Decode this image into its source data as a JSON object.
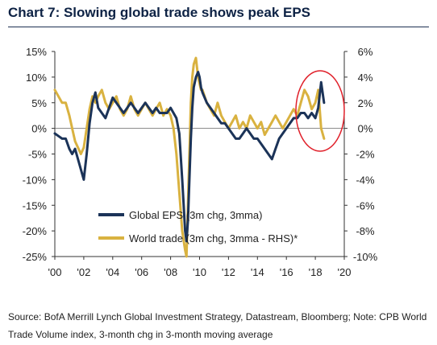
{
  "chart_data": {
    "type": "line",
    "title": "Chart 7: Slowing global trade shows peak EPS",
    "source": "Source: BofA Merrill Lynch Global Investment Strategy, Datastream, Bloomberg; Note: CPB World Trade Volume index, 3-month chg in 3-month moving average",
    "x_ticks": [
      "'00",
      "'02",
      "'04",
      "'06",
      "'08",
      "'10",
      "'12",
      "'14",
      "'16",
      "'18",
      "'20"
    ],
    "xlim": [
      2000,
      2020
    ],
    "y_left": {
      "ticks": [
        "15%",
        "10%",
        "5%",
        "0%",
        "-5%",
        "-10%",
        "-15%",
        "-20%",
        "-25%"
      ],
      "ylim": [
        -25,
        15
      ]
    },
    "y_right": {
      "ticks": [
        "6%",
        "4%",
        "2%",
        "0%",
        "-2%",
        "-4%",
        "-6%",
        "-8%",
        "-10%"
      ],
      "ylim": [
        -10,
        6
      ]
    },
    "legend_position": "lower-middle",
    "highlight": {
      "shape": "ellipse",
      "color": "#e0202a",
      "around": "2017-2018 peak"
    },
    "series": [
      {
        "name": "Global EPS (3m chg, 3mma)",
        "axis": "left",
        "color": "#1b3358",
        "x": [
          2000.0,
          2000.25,
          2000.5,
          2000.75,
          2001.0,
          2001.2,
          2001.4,
          2001.6,
          2001.8,
          2002.0,
          2002.2,
          2002.4,
          2002.6,
          2002.8,
          2003.0,
          2003.25,
          2003.5,
          2003.75,
          2004.0,
          2004.25,
          2004.5,
          2004.75,
          2005.0,
          2005.25,
          2005.5,
          2005.75,
          2006.0,
          2006.25,
          2006.5,
          2006.75,
          2007.0,
          2007.25,
          2007.5,
          2007.75,
          2008.0,
          2008.2,
          2008.4,
          2008.6,
          2008.8,
          2009.0,
          2009.1,
          2009.2,
          2009.3,
          2009.4,
          2009.5,
          2009.6,
          2009.75,
          2009.9,
          2010.0,
          2010.1,
          2010.2,
          2010.35,
          2010.5,
          2010.75,
          2011.0,
          2011.25,
          2011.5,
          2011.75,
          2012.0,
          2012.25,
          2012.5,
          2012.75,
          2013.0,
          2013.25,
          2013.5,
          2013.75,
          2014.0,
          2014.25,
          2014.5,
          2014.75,
          2015.0,
          2015.25,
          2015.5,
          2015.75,
          2016.0,
          2016.25,
          2016.5,
          2016.75,
          2017.0,
          2017.25,
          2017.5,
          2017.75,
          2018.0,
          2018.2,
          2018.4,
          2018.6
        ],
        "values": [
          -1,
          -1.5,
          -2,
          -2,
          -4,
          -5,
          -4,
          -6,
          -8,
          -10,
          -5,
          1,
          5,
          7,
          4,
          3,
          2,
          4,
          6,
          5,
          4,
          3,
          4,
          5,
          4,
          3,
          4,
          5,
          4,
          3,
          4,
          3,
          3,
          3,
          4,
          3,
          2,
          -1,
          -10,
          -20,
          -22,
          -18,
          -10,
          -2,
          4,
          8,
          10,
          11,
          10,
          8,
          7,
          6,
          5,
          4,
          3,
          2,
          1,
          1,
          0,
          -1,
          -2,
          -2,
          -1,
          0,
          -1,
          -2,
          -2,
          -3,
          -4,
          -5,
          -6,
          -4,
          -2,
          -1,
          0,
          1,
          2,
          2,
          3,
          3,
          2,
          3,
          2,
          4,
          9,
          5
        ]
      },
      {
        "name": "World trade (3m chg, 3mma - RHS)*",
        "axis": "right",
        "color": "#d9b240",
        "x": [
          2000.0,
          2000.25,
          2000.5,
          2000.75,
          2001.0,
          2001.2,
          2001.4,
          2001.6,
          2001.8,
          2002.0,
          2002.2,
          2002.4,
          2002.6,
          2002.8,
          2003.0,
          2003.25,
          2003.5,
          2003.75,
          2004.0,
          2004.25,
          2004.5,
          2004.75,
          2005.0,
          2005.25,
          2005.5,
          2005.75,
          2006.0,
          2006.25,
          2006.5,
          2006.75,
          2007.0,
          2007.25,
          2007.5,
          2007.75,
          2008.0,
          2008.2,
          2008.4,
          2008.6,
          2008.8,
          2009.0,
          2009.1,
          2009.2,
          2009.3,
          2009.4,
          2009.5,
          2009.6,
          2009.75,
          2009.9,
          2010.0,
          2010.1,
          2010.2,
          2010.35,
          2010.5,
          2010.75,
          2011.0,
          2011.25,
          2011.5,
          2011.75,
          2012.0,
          2012.25,
          2012.5,
          2012.75,
          2013.0,
          2013.25,
          2013.5,
          2013.75,
          2014.0,
          2014.25,
          2014.5,
          2014.75,
          2015.0,
          2015.25,
          2015.5,
          2015.75,
          2016.0,
          2016.25,
          2016.5,
          2016.75,
          2017.0,
          2017.25,
          2017.5,
          2017.75,
          2018.0,
          2018.2,
          2018.4,
          2018.6
        ],
        "values": [
          3,
          2.5,
          2,
          2,
          1,
          0,
          -1,
          -1.5,
          -2,
          -1.5,
          0,
          1.5,
          2.5,
          2,
          2.5,
          3,
          2,
          1.5,
          2,
          2.5,
          1.5,
          1,
          1.5,
          2.5,
          1.5,
          1,
          1.5,
          2,
          1.5,
          1,
          1.5,
          2,
          1,
          1.5,
          1,
          0,
          -2,
          -5,
          -8,
          -9.5,
          -10,
          -6,
          -2,
          2,
          4,
          5,
          5.5,
          4,
          3.5,
          3,
          3,
          2.5,
          2,
          1.5,
          1,
          2,
          1,
          0.5,
          0,
          0.5,
          1,
          0,
          0.5,
          0,
          1,
          0.5,
          0,
          0.5,
          -0.5,
          0,
          0.5,
          1,
          0.5,
          0,
          0.5,
          1,
          1.5,
          1,
          2,
          3,
          2.5,
          1.5,
          2,
          3,
          0,
          -0.8
        ]
      }
    ]
  }
}
